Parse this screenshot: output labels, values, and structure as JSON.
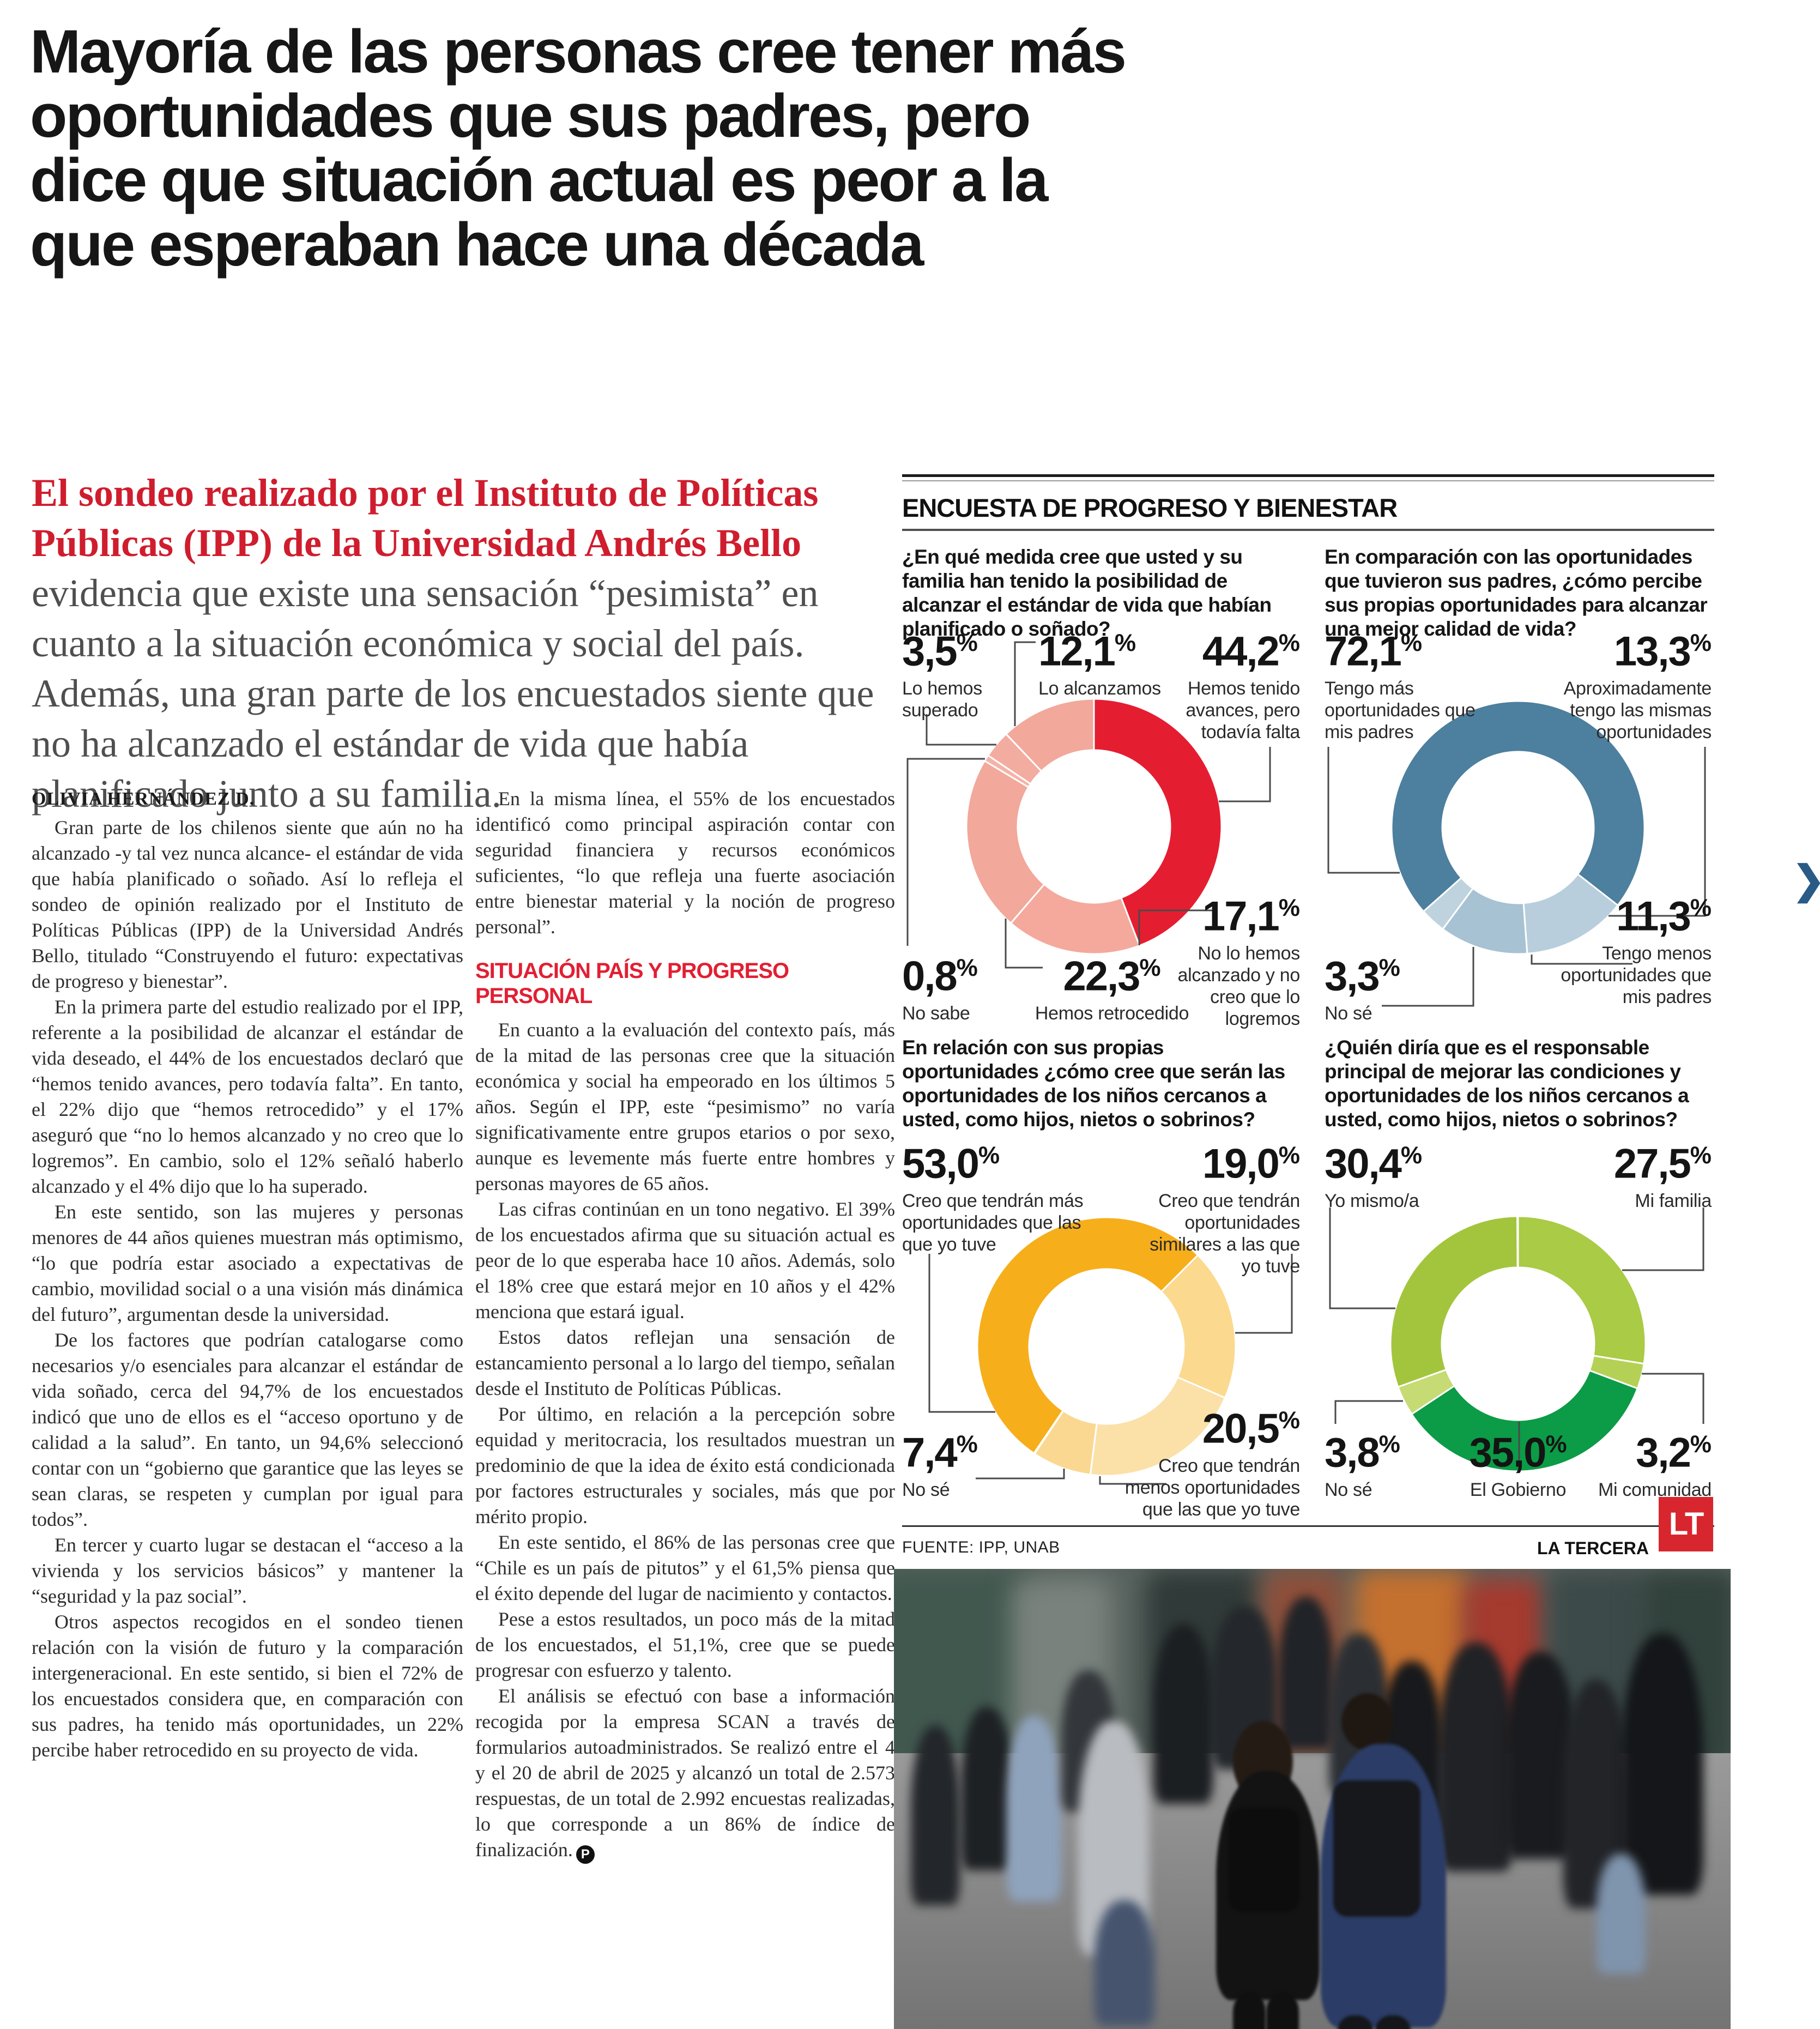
{
  "headline": {
    "lines": [
      "Mayoría de las personas cree tener más",
      "oportunidades que sus padres, pero",
      "dice que situación actual es peor a la",
      "que esperaban hace una década"
    ]
  },
  "lede": {
    "red": "El sondeo realizado por el Instituto de Políticas Públicas (IPP) de la Universidad Andrés Bello",
    "gray": " evidencia que existe una sensación “pesimista” en cuanto a la situación económica y social del país. Además, una gran parte de los encuestados siente que no ha alcanzado el estándar de vida que había planificado junto a su familia."
  },
  "article": {
    "byline": "OLIVIA HERNÁNDEZ D.",
    "endmark": "P",
    "col1": [
      "Gran parte de los chilenos siente que aún no ha alcanzado -y tal vez nunca alcance- el estándar de vida que había planificado o soñado. Así lo refleja el sondeo de opinión realizado por el Instituto de Políticas Públicas (IPP) de la Universidad Andrés Bello, titulado “Construyendo el futuro: expectativas de progreso y bienestar”.",
      "En la primera parte del estudio realizado por el IPP, referente a la posibilidad de alcanzar el estándar de vida deseado, el 44% de los encuestados declaró que “hemos tenido avances, pero todavía falta”. En tanto, el 22% dijo que “hemos retrocedido” y el 17% aseguró que “no lo hemos alcanzado y no creo que lo logremos”. En cambio, solo el 12% señaló haberlo alcanzado y el 4% dijo que lo ha superado.",
      "En este sentido, son las mujeres y personas menores de 44 años quienes muestran más optimismo, “lo que podría estar asociado a expectativas de cambio, movilidad social o a una visión más dinámica del futuro”, argumentan desde la universidad.",
      "De los factores que podrían catalogarse como necesarios y/o esenciales para alcanzar el estándar de vida soñado, cerca del 94,7% de los encuestados indicó que uno de ellos es el “acceso oportuno y de calidad a la salud”. En tanto, un 94,6% seleccionó contar con un “gobierno que garantice que las leyes se sean claras, se respeten y cumplan por igual para todos”.",
      "En tercer y cuarto lugar se destacan el “acceso a la vivienda y los servicios básicos” y mantener la “seguridad y la paz social”.",
      "Otros aspectos recogidos en el sondeo tienen relación con la visión de futuro y la comparación intergeneracional. En este sentido, si bien el 72% de los encuestados considera que, en comparación con sus padres, ha tenido más oportunidades, un 22% percibe haber retrocedido en su proyecto de vida."
    ],
    "col2a": [
      "En la misma línea, el 55% de los encuestados identificó como principal aspiración contar con seguridad financiera y recursos económicos suficientes, “lo que refleja una fuerte asociación entre bienestar material y la noción de progreso personal”."
    ],
    "subhead": "SITUACIÓN PAÍS Y PROGRESO PERSONAL",
    "col2b": [
      "En cuanto a la evaluación del contexto país, más de la mitad de las personas cree que la situación económica y social ha empeorado en los últimos 5 años. Según el IPP, este “pesimismo” no varía significativamente entre grupos etarios o por sexo, aunque es levemente más fuerte entre hombres y personas mayores de 65 años.",
      "Las cifras continúan en un tono negativo. El 39% de los encuestados afirma que su situación actual es peor de lo que esperaba hace 10 años. Además, solo el 18% cree que estará mejor en 10 años y el 42% menciona que estará igual.",
      "Estos datos reflejan una sensación de estancamiento personal a lo largo del tiempo, señalan desde el Instituto de Políticas Públicas.",
      "Por último, en relación a la percepción sobre equidad y meritocracia, los resultados muestran un predominio de que la idea de éxito está condicionada por factores estructurales y sociales, más que por mérito propio.",
      "En este sentido, el 86% de las personas cree que “Chile es un país de pitutos” y el 61,5% piensa que el éxito depende del lugar de nacimiento y contactos.",
      "Pese a estos resultados, un poco más de la mitad de los encuestados, el 51,1%, cree que se puede progresar con esfuerzo y talento.",
      "El análisis se efectuó con base a información recogida por la empresa SCAN a través de formularios autoadministrados. Se realizó entre el 4 y el 20 de abril de 2025 y alcanzó un total de 2.573 respuestas, de un total de 2.992 encuestas realizadas, lo que corresponde a un 86% de índice de finalización."
    ]
  },
  "infographic": {
    "title": "ENCUESTA DE PROGRESO Y BIENESTAR",
    "source": "FUENTE: IPP, UNAB",
    "credit": "LA TERCERA",
    "logo_text": "LT",
    "nav_arrow": "❯",
    "accent_red": "#E51D31",
    "accent_blue": "#4D7F9E",
    "accent_yellow": "#F6AE1B",
    "accent_green": "#0C9B47"
  },
  "chart_data": [
    {
      "type": "donut",
      "question": "¿En qué medida cree que usted y su familia han tenido la posibilidad de alcanzar el estándar de vida que habían planificado o soñado?",
      "start_angle": 0,
      "segments": [
        {
          "label": "Hemos tenido avances, pero todavía falta",
          "value": 44.2,
          "display": "44,2",
          "unit": "%",
          "color": "#E51D31"
        },
        {
          "label": "No lo hemos alcanzado y no creo que lo logremos",
          "value": 17.1,
          "display": "17,1",
          "unit": "%",
          "color": "#F4A99C"
        },
        {
          "label": "Hemos retrocedido",
          "value": 22.3,
          "display": "22,3",
          "unit": "%",
          "color": "#F2A89A"
        },
        {
          "label": "No sabe",
          "value": 0.8,
          "display": "0,8",
          "unit": "%",
          "color": "#F5B3A7"
        },
        {
          "label": "Lo hemos superado",
          "value": 3.5,
          "display": "3,5",
          "unit": "%",
          "color": "#F3ACA0"
        },
        {
          "label": "Lo alcanzamos",
          "value": 12.1,
          "display": "12,1",
          "unit": "%",
          "color": "#F2A89B"
        }
      ]
    },
    {
      "type": "donut",
      "question": "En comparación con las oportunidades que tuvieron sus padres, ¿cómo percibe sus propias oportunidades para alcanzar una mejor calidad de vida?",
      "start_angle": 228.4,
      "segments": [
        {
          "label": "Tengo más oportunidades que mis padres",
          "value": 72.1,
          "display": "72,1",
          "unit": "%",
          "color": "#4D7F9E"
        },
        {
          "label": "Aproximadamente tengo las mismas oportunidades",
          "value": 13.3,
          "display": "13,3",
          "unit": "%",
          "color": "#B8CEDC"
        },
        {
          "label": "Tengo menos oportunidades que mis padres",
          "value": 11.3,
          "display": "11,3",
          "unit": "%",
          "color": "#A7C2D2"
        },
        {
          "label": "No sé",
          "value": 3.3,
          "display": "3,3",
          "unit": "%",
          "color": "#BFD3DF"
        }
      ]
    },
    {
      "type": "donut",
      "question": "En relación con sus propias oportunidades ¿cómo cree que serán las oportunidades de los niños cercanos a usted, como hijos, nietos o sobrinos?",
      "start_angle": 214.2,
      "segments": [
        {
          "label": "Creo que tendrán más oportunidades que las que yo tuve",
          "value": 53.0,
          "display": "53,0",
          "unit": "%",
          "color": "#F6AE1B"
        },
        {
          "label": "Creo que tendrán oportunidades similares a las que yo tuve",
          "value": 19.0,
          "display": "19,0",
          "unit": "%",
          "color": "#FBD98E"
        },
        {
          "label": "Creo que tendrán menos oportunidades que las que yo tuve",
          "value": 20.5,
          "display": "20,5",
          "unit": "%",
          "color": "#FBE0A8"
        },
        {
          "label": "No sé",
          "value": 7.4,
          "display": "7,4",
          "unit": "%",
          "color": "#FAD891"
        }
      ]
    },
    {
      "type": "donut",
      "question": "¿Quién diría que es el responsable principal de mejorar las condiciones y oportunidades de los niños cercanos a usted, como hijos, nietos o sobrinos?",
      "start_angle": 0,
      "segments": [
        {
          "label": "Mi familia",
          "value": 27.5,
          "display": "27,5",
          "unit": "%",
          "color": "#A9CB45"
        },
        {
          "label": "Mi comunidad",
          "value": 3.2,
          "display": "3,2",
          "unit": "%",
          "color": "#B5D155"
        },
        {
          "label": "El Gobierno",
          "value": 35.0,
          "display": "35,0",
          "unit": "%",
          "color": "#0C9B47"
        },
        {
          "label": "No sé",
          "value": 3.8,
          "display": "3,8",
          "unit": "%",
          "color": "#C6DB74"
        },
        {
          "label": "Yo mismo/a",
          "value": 30.4,
          "display": "30,4",
          "unit": "%",
          "color": "#A3C53D"
        }
      ]
    }
  ]
}
